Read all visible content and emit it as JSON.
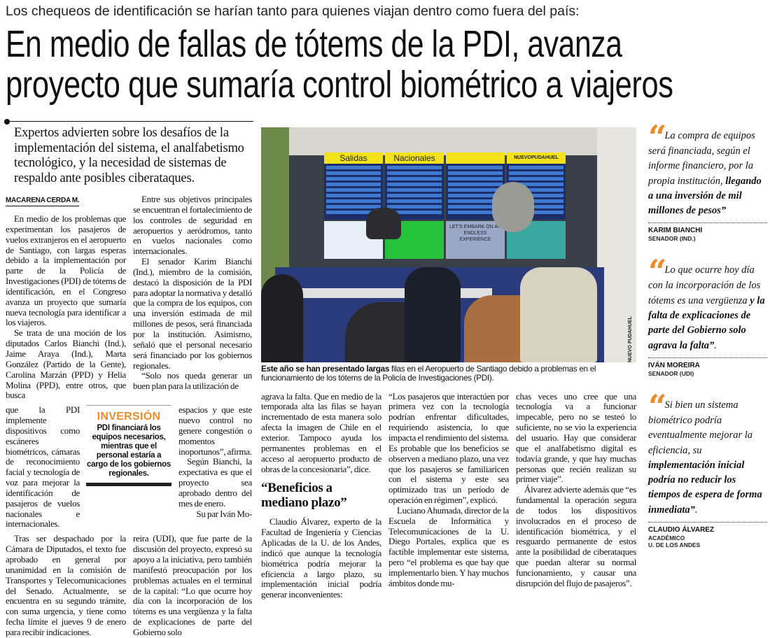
{
  "kicker": "Los chequeos de identificación se harían tanto para quienes viajan dentro como fuera del país:",
  "headline": [
    "En medio de fallas de tótems de la PDI, avanza",
    "proyecto que sumaría control biométrico a viajeros"
  ],
  "deck": "Expertos advierten sobre los desafíos de la implementación del sistema, el analfabetismo tecnológico, y la necesidad de sistemas de respaldo ante posibles ciberataques.",
  "byline": "MACARENA CERDA M.",
  "col1": {
    "a": [
      "En medio de los problemas que experimentan los pasajeros de vuelos extranjeros en el aeropuerto de Santiago, con largas esperas debido a la implementación por parte de la Policía de Investigaciones (PDI) de tótems de identificación, en el Congreso avanza un proyecto que sumaría nueva tecnología para identificar a los viajeros.",
      "Se trata de una moción de los diputados Carlos Bianchi (Ind.), Jaime Araya (Ind.), Marta González (Partido de la Gente), Carolina Marzán (PPD) y Helia Molina (PPD), entre otros, que busca"
    ],
    "b": "que la PDI implemente dispositivos como escáneres biométricos, cámaras de reconocimiento facial y tecnología de voz para mejorar la identificación de pasajeros de vuelos nacionales e internacionales.",
    "c": "Tras ser despachado por la Cámara de Diputados, el texto fue aprobado en general por unanimidad en la comisión de Transportes y Telecomunicaciones del Senado. Actualmente, se encuentra en su segundo trámite, con suma urgencia, y tiene como fecha límite el jueves 9 de enero para recibir indicaciones."
  },
  "col2": {
    "a": [
      "Entre sus objetivos principales se encuentran el fortalecimiento de los controles de seguridad en aeropuertos y aeródromos, tanto en vuelos nacionales como internacionales.",
      "El senador Karim Bianchi (Ind.), miembro de la comisión, destacó la disposición de la PDI para adoptar la normativa y detalló que la compra de los equipos, con una inversión estimada de mil millones de pesos, será financiada por la institución. Asimismo, señaló que el personal necesario será financiado por los gobiernos regionales.",
      "“Solo nos queda generar un buen plan para la utilización de"
    ],
    "b": [
      "espacios y que este nuevo control no genere congestión o momentos inoportunos”, afirma.",
      "Según Bianchi, la expectativa es que el proyecto sea aprobado dentro del mes de enero.",
      "Su par Iván Mo-"
    ],
    "c": "reira (UDI), que fue parte de la discusión del proyecto, expresó su apoyo a la iniciativa, pero también manifestó preocupación por los problemas actuales en el terminal de la capital: “Lo que ocurre hoy día con la incorporación de los tótems es una vergüenza y la falta de explicaciones de parte del Gobierno solo"
  },
  "sidebox": {
    "title": "INVERSIÓN",
    "text": "PDI financiará los equipos necesarios, mientras que el personal estaría a cargo de los gobiernos regionales.",
    "accent": "#ef8a2a"
  },
  "photo": {
    "boards": [
      "Salidas",
      "Nacionales",
      "",
      "NUEVOPUDAHUEL"
    ],
    "ad_text": "LET'S EMBARK ON AN ENDLESS EXPERIENCE",
    "credit": "NUEVO PUDAHUEL"
  },
  "caption": {
    "bold": "Este año se han presentado largas",
    "rest": " filas en el Aeropuerto de Santiago debido a problemas en el funcionamiento de los tótems de la Policía de Investigaciones (PDI)."
  },
  "col3": {
    "a": "agrava la falta. Que en medio de la temporada alta las filas se hayan incrementado de esta manera solo afecta la imagen de Chile en el exterior. Tampoco ayuda los permanentes problemas en el acceso al aeropuerto producto de obras de la concesionaria”, dice.",
    "subhead": "“Beneficios a mediano plazo”",
    "b": "Claudio Álvarez, experto de la Facultad de Ingeniería y Ciencias Aplicadas de la U. de los Andes, indicó que aunque la tecnología biométrica podría mejorar la eficiencia a largo plazo, su implementación inicial podría generar inconvenientes:"
  },
  "col4": [
    "“Los pasajeros que interactúen por primera vez con la tecnología podrían enfrentar dificultades, requiriendo asistencia, lo que impacta el rendimiento del sistema. Es probable que los beneficios se observen a mediano plazo, una vez que los pasajeros se familiaricen con el sistema y este sea optimizado tras un período de operación en régimen”, explicó.",
    "Luciano Ahumada, director de la Escuela de Informática y Telecomunicaciones de la U. Diego Portales, explica que es factible implementar este sistema, pero “el problema es que hay que implementarlo bien. Y hay muchos ámbitos donde mu-"
  ],
  "col5": [
    "chas veces uno cree que una tecnología va a funcionar impecable, pero no se testeó lo suficiente, no se vio la experiencia del usuario. Hay que considerar que el analfabetismo digital es todavía grande, y que hay muchas personas que recién realizan su primer viaje”.",
    "Álvarez advierte además que “es fundamental la operación segura de todos los dispositivos involucrados en el proceso de identificación biométrica, y el resguardo permanente de estos ante la posibilidad de ciberataques que puedan alterar su normal funcionamiento, y causar una disrupción del flujo de pasajeros”."
  ],
  "quotes": [
    {
      "normal": "La compra de equipos será financiada, según el informe financiero, por la propia institución, ",
      "bold": "llegando a una inversión de mil millones de pesos”",
      "after": "",
      "name": "KARIM BIANCHI",
      "role": "SENADOR (IND.)",
      "role2": ""
    },
    {
      "normal": "Lo que ocurre hoy día con la incorporación de los tótems es una vergüenza ",
      "bold": "y la falta de explicaciones de parte del Gobierno solo agrava la falta”",
      "after": ".",
      "name": "IVÁN MOREIRA",
      "role": "SENADOR (UDI)",
      "role2": ""
    },
    {
      "normal": "Si bien un sistema biométrico podría eventualmente mejorar la eficiencia, su ",
      "bold": "implementación inicial podría no reducir los tiempos de espera de forma inmediata”",
      "after": ".",
      "name": "CLAUDIO ÁLVAREZ",
      "role": "ACADÉMICO",
      "role2": "U. DE LOS ANDES"
    }
  ]
}
